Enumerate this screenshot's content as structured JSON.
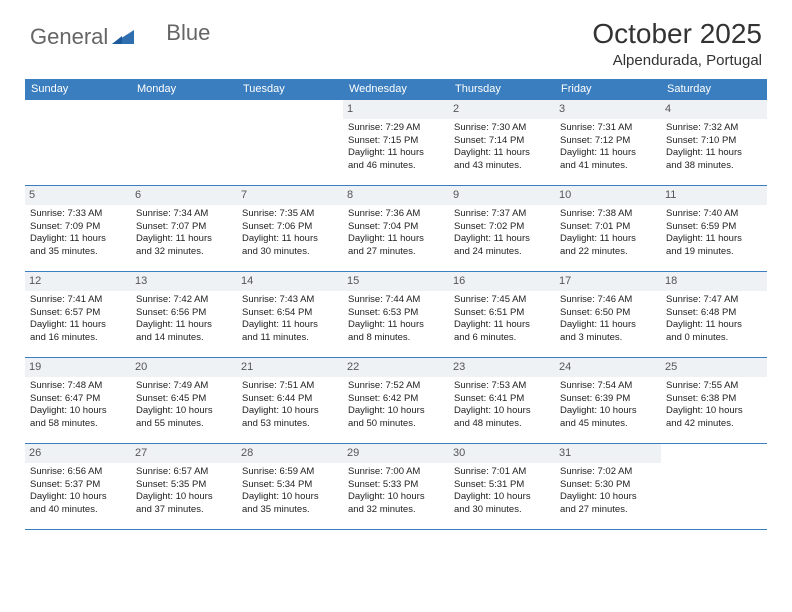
{
  "brand": {
    "text1": "General",
    "text2": "Blue"
  },
  "colors": {
    "header_bg": "#3a7ebf",
    "header_fg": "#ffffff",
    "daynum_bg": "#eef2f5",
    "daynum_fg": "#555555",
    "border": "#3a7ebf",
    "text": "#222222",
    "logo_text": "#666666",
    "brand_accent": "#2f6fb0"
  },
  "title": "October 2025",
  "location": "Alpendurada, Portugal",
  "weekdays": [
    "Sunday",
    "Monday",
    "Tuesday",
    "Wednesday",
    "Thursday",
    "Friday",
    "Saturday"
  ],
  "weeks": [
    [
      {
        "day": "",
        "lines": []
      },
      {
        "day": "",
        "lines": []
      },
      {
        "day": "",
        "lines": []
      },
      {
        "day": "1",
        "lines": [
          "Sunrise: 7:29 AM",
          "Sunset: 7:15 PM",
          "Daylight: 11 hours",
          "and 46 minutes."
        ]
      },
      {
        "day": "2",
        "lines": [
          "Sunrise: 7:30 AM",
          "Sunset: 7:14 PM",
          "Daylight: 11 hours",
          "and 43 minutes."
        ]
      },
      {
        "day": "3",
        "lines": [
          "Sunrise: 7:31 AM",
          "Sunset: 7:12 PM",
          "Daylight: 11 hours",
          "and 41 minutes."
        ]
      },
      {
        "day": "4",
        "lines": [
          "Sunrise: 7:32 AM",
          "Sunset: 7:10 PM",
          "Daylight: 11 hours",
          "and 38 minutes."
        ]
      }
    ],
    [
      {
        "day": "5",
        "lines": [
          "Sunrise: 7:33 AM",
          "Sunset: 7:09 PM",
          "Daylight: 11 hours",
          "and 35 minutes."
        ]
      },
      {
        "day": "6",
        "lines": [
          "Sunrise: 7:34 AM",
          "Sunset: 7:07 PM",
          "Daylight: 11 hours",
          "and 32 minutes."
        ]
      },
      {
        "day": "7",
        "lines": [
          "Sunrise: 7:35 AM",
          "Sunset: 7:06 PM",
          "Daylight: 11 hours",
          "and 30 minutes."
        ]
      },
      {
        "day": "8",
        "lines": [
          "Sunrise: 7:36 AM",
          "Sunset: 7:04 PM",
          "Daylight: 11 hours",
          "and 27 minutes."
        ]
      },
      {
        "day": "9",
        "lines": [
          "Sunrise: 7:37 AM",
          "Sunset: 7:02 PM",
          "Daylight: 11 hours",
          "and 24 minutes."
        ]
      },
      {
        "day": "10",
        "lines": [
          "Sunrise: 7:38 AM",
          "Sunset: 7:01 PM",
          "Daylight: 11 hours",
          "and 22 minutes."
        ]
      },
      {
        "day": "11",
        "lines": [
          "Sunrise: 7:40 AM",
          "Sunset: 6:59 PM",
          "Daylight: 11 hours",
          "and 19 minutes."
        ]
      }
    ],
    [
      {
        "day": "12",
        "lines": [
          "Sunrise: 7:41 AM",
          "Sunset: 6:57 PM",
          "Daylight: 11 hours",
          "and 16 minutes."
        ]
      },
      {
        "day": "13",
        "lines": [
          "Sunrise: 7:42 AM",
          "Sunset: 6:56 PM",
          "Daylight: 11 hours",
          "and 14 minutes."
        ]
      },
      {
        "day": "14",
        "lines": [
          "Sunrise: 7:43 AM",
          "Sunset: 6:54 PM",
          "Daylight: 11 hours",
          "and 11 minutes."
        ]
      },
      {
        "day": "15",
        "lines": [
          "Sunrise: 7:44 AM",
          "Sunset: 6:53 PM",
          "Daylight: 11 hours",
          "and 8 minutes."
        ]
      },
      {
        "day": "16",
        "lines": [
          "Sunrise: 7:45 AM",
          "Sunset: 6:51 PM",
          "Daylight: 11 hours",
          "and 6 minutes."
        ]
      },
      {
        "day": "17",
        "lines": [
          "Sunrise: 7:46 AM",
          "Sunset: 6:50 PM",
          "Daylight: 11 hours",
          "and 3 minutes."
        ]
      },
      {
        "day": "18",
        "lines": [
          "Sunrise: 7:47 AM",
          "Sunset: 6:48 PM",
          "Daylight: 11 hours",
          "and 0 minutes."
        ]
      }
    ],
    [
      {
        "day": "19",
        "lines": [
          "Sunrise: 7:48 AM",
          "Sunset: 6:47 PM",
          "Daylight: 10 hours",
          "and 58 minutes."
        ]
      },
      {
        "day": "20",
        "lines": [
          "Sunrise: 7:49 AM",
          "Sunset: 6:45 PM",
          "Daylight: 10 hours",
          "and 55 minutes."
        ]
      },
      {
        "day": "21",
        "lines": [
          "Sunrise: 7:51 AM",
          "Sunset: 6:44 PM",
          "Daylight: 10 hours",
          "and 53 minutes."
        ]
      },
      {
        "day": "22",
        "lines": [
          "Sunrise: 7:52 AM",
          "Sunset: 6:42 PM",
          "Daylight: 10 hours",
          "and 50 minutes."
        ]
      },
      {
        "day": "23",
        "lines": [
          "Sunrise: 7:53 AM",
          "Sunset: 6:41 PM",
          "Daylight: 10 hours",
          "and 48 minutes."
        ]
      },
      {
        "day": "24",
        "lines": [
          "Sunrise: 7:54 AM",
          "Sunset: 6:39 PM",
          "Daylight: 10 hours",
          "and 45 minutes."
        ]
      },
      {
        "day": "25",
        "lines": [
          "Sunrise: 7:55 AM",
          "Sunset: 6:38 PM",
          "Daylight: 10 hours",
          "and 42 minutes."
        ]
      }
    ],
    [
      {
        "day": "26",
        "lines": [
          "Sunrise: 6:56 AM",
          "Sunset: 5:37 PM",
          "Daylight: 10 hours",
          "and 40 minutes."
        ]
      },
      {
        "day": "27",
        "lines": [
          "Sunrise: 6:57 AM",
          "Sunset: 5:35 PM",
          "Daylight: 10 hours",
          "and 37 minutes."
        ]
      },
      {
        "day": "28",
        "lines": [
          "Sunrise: 6:59 AM",
          "Sunset: 5:34 PM",
          "Daylight: 10 hours",
          "and 35 minutes."
        ]
      },
      {
        "day": "29",
        "lines": [
          "Sunrise: 7:00 AM",
          "Sunset: 5:33 PM",
          "Daylight: 10 hours",
          "and 32 minutes."
        ]
      },
      {
        "day": "30",
        "lines": [
          "Sunrise: 7:01 AM",
          "Sunset: 5:31 PM",
          "Daylight: 10 hours",
          "and 30 minutes."
        ]
      },
      {
        "day": "31",
        "lines": [
          "Sunrise: 7:02 AM",
          "Sunset: 5:30 PM",
          "Daylight: 10 hours",
          "and 27 minutes."
        ]
      },
      {
        "day": "",
        "lines": []
      }
    ]
  ]
}
